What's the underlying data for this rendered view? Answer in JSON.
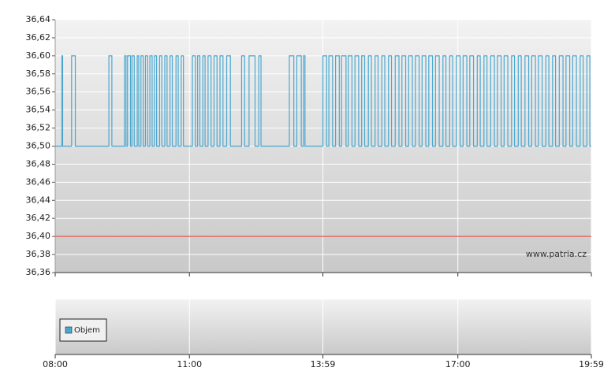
{
  "chart_data": [
    {
      "type": "line",
      "step": true,
      "grid": true,
      "watermark": "www.patria.cz",
      "ylim": [
        36.36,
        36.64
      ],
      "yticks": [
        {
          "value": 36.36,
          "label": "36,36"
        },
        {
          "value": 36.38,
          "label": "36,38"
        },
        {
          "value": 36.4,
          "label": "36,40"
        },
        {
          "value": 36.42,
          "label": "36,42"
        },
        {
          "value": 36.44,
          "label": "36,44"
        },
        {
          "value": 36.46,
          "label": "36,46"
        },
        {
          "value": 36.48,
          "label": "36,48"
        },
        {
          "value": 36.5,
          "label": "36,50"
        },
        {
          "value": 36.52,
          "label": "36,52"
        },
        {
          "value": 36.54,
          "label": "36,54"
        },
        {
          "value": 36.56,
          "label": "36,56"
        },
        {
          "value": 36.58,
          "label": "36,58"
        },
        {
          "value": 36.6,
          "label": "36,60"
        },
        {
          "value": 36.62,
          "label": "36,62"
        },
        {
          "value": 36.64,
          "label": "36,64"
        }
      ],
      "reference_line": {
        "value": 36.4,
        "color": "#e05a4a"
      },
      "x": [
        "08:00",
        "08:09",
        "08:10",
        "08:22",
        "08:27",
        "09:12",
        "09:16",
        "09:33",
        "09:35",
        "09:37",
        "09:41",
        "09:43",
        "09:46",
        "09:50",
        "09:52",
        "09:55",
        "09:58",
        "10:01",
        "10:04",
        "10:07",
        "10:10",
        "10:13",
        "10:16",
        "10:20",
        "10:23",
        "10:27",
        "10:30",
        "10:34",
        "10:37",
        "10:42",
        "10:45",
        "10:49",
        "10:52",
        "11:04",
        "11:08",
        "11:11",
        "11:14",
        "11:18",
        "11:21",
        "11:25",
        "11:29",
        "11:33",
        "11:37",
        "11:41",
        "11:45",
        "11:50",
        "11:55",
        "12:10",
        "12:14",
        "12:20",
        "12:28",
        "12:33",
        "12:36",
        "13:14",
        "13:20",
        "13:24",
        "13:30",
        "13:33",
        "13:35",
        "13:59",
        "14:04",
        "14:07",
        "14:12",
        "14:16",
        "14:21",
        "14:24",
        "14:30",
        "14:33",
        "14:38",
        "14:42",
        "14:47",
        "14:51",
        "14:55",
        "15:00",
        "15:04",
        "15:09",
        "15:13",
        "15:18",
        "15:22",
        "15:27",
        "15:31",
        "15:36",
        "15:41",
        "15:45",
        "15:50",
        "15:54",
        "15:59",
        "16:03",
        "16:08",
        "16:12",
        "16:17",
        "16:21",
        "16:26",
        "16:30",
        "16:35",
        "16:40",
        "16:44",
        "16:49",
        "16:53",
        "16:58",
        "17:03",
        "17:07",
        "17:12",
        "17:16",
        "17:21",
        "17:26",
        "17:30",
        "17:35",
        "17:39",
        "17:44",
        "17:49",
        "17:53",
        "17:58",
        "18:02",
        "18:07",
        "18:12",
        "18:16",
        "18:21",
        "18:25",
        "18:30",
        "18:35",
        "18:39",
        "18:44",
        "18:48",
        "18:53",
        "18:58",
        "19:02",
        "19:07",
        "19:11",
        "19:16",
        "19:21",
        "19:25",
        "19:30",
        "19:34",
        "19:39",
        "19:44",
        "19:48",
        "19:53",
        "19:57",
        "19:59"
      ],
      "series": [
        {
          "color": "#4aa8d0",
          "values": [
            36.5,
            36.6,
            36.5,
            36.6,
            36.5,
            36.6,
            36.5,
            36.6,
            36.5,
            36.6,
            36.5,
            36.6,
            36.5,
            36.6,
            36.5,
            36.6,
            36.5,
            36.6,
            36.5,
            36.6,
            36.5,
            36.6,
            36.5,
            36.6,
            36.5,
            36.6,
            36.5,
            36.6,
            36.5,
            36.6,
            36.5,
            36.6,
            36.5,
            36.6,
            36.5,
            36.6,
            36.5,
            36.6,
            36.5,
            36.6,
            36.5,
            36.6,
            36.5,
            36.6,
            36.5,
            36.6,
            36.5,
            36.6,
            36.5,
            36.6,
            36.5,
            36.6,
            36.5,
            36.6,
            36.5,
            36.6,
            36.5,
            36.6,
            36.5,
            36.6,
            36.5,
            36.6,
            36.5,
            36.6,
            36.5,
            36.6,
            36.5,
            36.6,
            36.5,
            36.6,
            36.5,
            36.6,
            36.5,
            36.6,
            36.5,
            36.6,
            36.5,
            36.6,
            36.5,
            36.6,
            36.5,
            36.6,
            36.5,
            36.6,
            36.5,
            36.6,
            36.5,
            36.6,
            36.5,
            36.6,
            36.5,
            36.6,
            36.5,
            36.6,
            36.5,
            36.6,
            36.5,
            36.6,
            36.5,
            36.6,
            36.5,
            36.6,
            36.5,
            36.6,
            36.5,
            36.6,
            36.5,
            36.6,
            36.5,
            36.6,
            36.5,
            36.6,
            36.5,
            36.6,
            36.5,
            36.6,
            36.5,
            36.6,
            36.5,
            36.6,
            36.5,
            36.6,
            36.5,
            36.6,
            36.5,
            36.6,
            36.5,
            36.6,
            36.5,
            36.6,
            36.5,
            36.6,
            36.5,
            36.6,
            36.5,
            36.6,
            36.5,
            36.6,
            36.5,
            36.5
          ]
        }
      ]
    },
    {
      "type": "bar",
      "grid": true,
      "legend": "upper left",
      "xlim": [
        "08:00",
        "19:59"
      ],
      "xticks": [
        "08:00",
        "11:00",
        "13:59",
        "17:00",
        "19:59"
      ],
      "x": [],
      "series": [
        {
          "name": "Objem",
          "color": "#4aa8d0",
          "values": []
        }
      ]
    }
  ]
}
